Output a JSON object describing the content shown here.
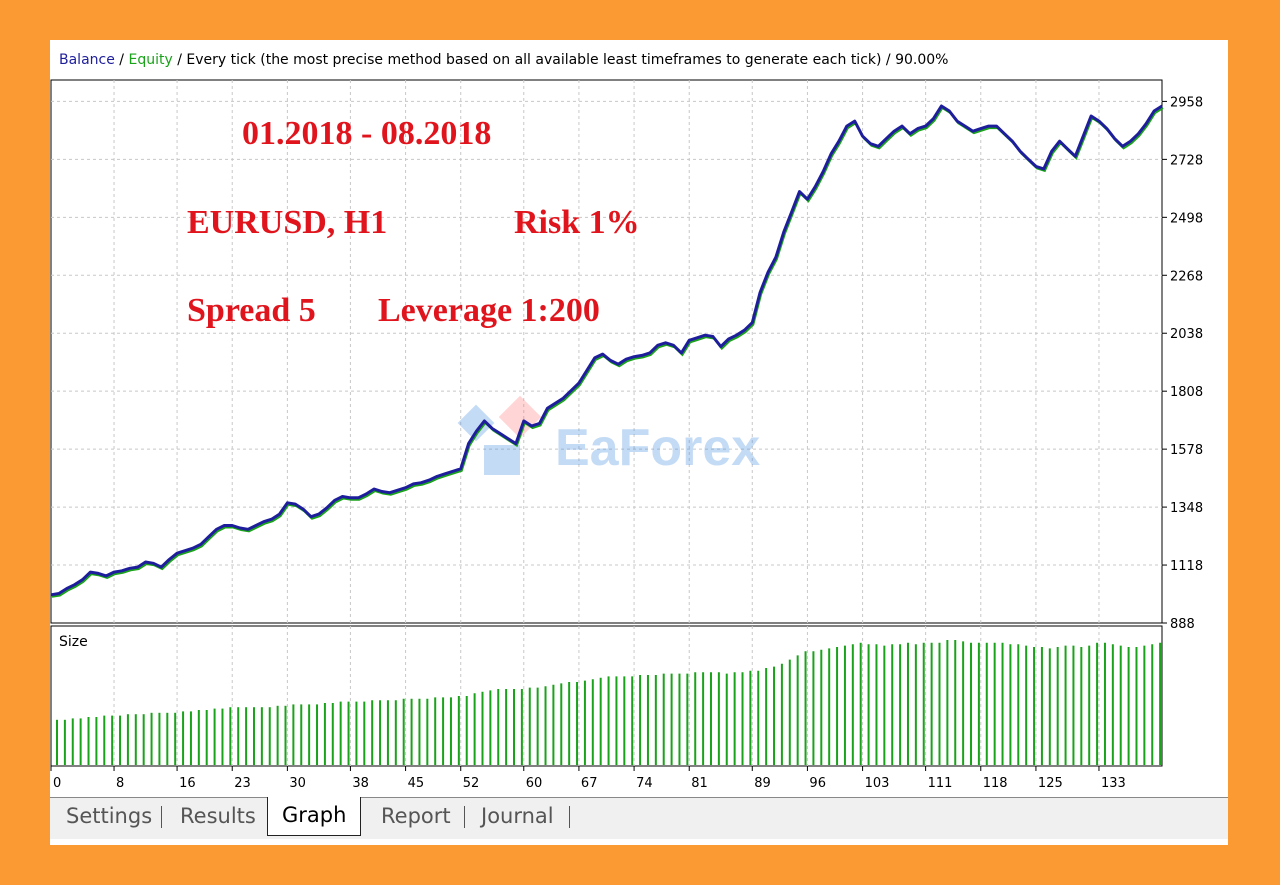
{
  "header": {
    "balance_label": "Balance",
    "sep1": " / ",
    "equity_label": "Equity",
    "rest": " / Every tick (the most precise method based on all available least timeframes to generate each tick) / 90.00%",
    "balance_color": "#1e1e9c",
    "equity_color": "#1aa31a"
  },
  "overlay": {
    "period": "01.2018 - 08.2018",
    "symbol": "EURUSD, H1",
    "risk": "Risk 1%",
    "spread": "Spread 5",
    "leverage": "Leverage 1:200"
  },
  "watermark": {
    "text": "EaForex"
  },
  "size_label": "Size",
  "tabs": [
    "Settings",
    "Results",
    "Graph",
    "Report",
    "Journal"
  ],
  "active_tab": "Graph",
  "chart_data": [
    {
      "type": "line",
      "title": "",
      "ylim": [
        888,
        3043
      ],
      "y_ticks": [
        2958,
        2728,
        2498,
        2268,
        2038,
        1808,
        1578,
        1348,
        1118,
        888
      ],
      "x_ticks": [
        0,
        8,
        16,
        23,
        30,
        38,
        45,
        52,
        60,
        67,
        74,
        81,
        89,
        96,
        103,
        111,
        118,
        125,
        133
      ],
      "xlim": [
        0,
        141
      ],
      "grid": true,
      "series": [
        {
          "name": "Balance",
          "color": "#1e1e9c",
          "x": [
            0,
            1,
            2,
            3,
            4,
            5,
            6,
            7,
            8,
            9,
            10,
            11,
            12,
            13,
            14,
            15,
            16,
            17,
            18,
            19,
            20,
            21,
            22,
            23,
            24,
            25,
            26,
            27,
            28,
            29,
            30,
            31,
            32,
            33,
            34,
            35,
            36,
            37,
            38,
            39,
            40,
            41,
            42,
            43,
            44,
            45,
            46,
            47,
            48,
            49,
            50,
            51,
            52,
            53,
            54,
            55,
            56,
            57,
            58,
            59,
            60,
            61,
            62,
            63,
            64,
            65,
            66,
            67,
            68,
            69,
            70,
            71,
            72,
            73,
            74,
            75,
            76,
            77,
            78,
            79,
            80,
            81,
            82,
            83,
            84,
            85,
            86,
            87,
            88,
            89,
            90,
            91,
            92,
            93,
            94,
            95,
            96,
            97,
            98,
            99,
            100,
            101,
            102,
            103,
            104,
            105,
            106,
            107,
            108,
            109,
            110,
            111,
            112,
            113,
            114,
            115,
            116,
            117,
            118,
            119,
            120,
            121,
            122,
            123,
            124,
            125,
            126,
            127,
            128,
            129,
            130,
            131,
            132,
            133,
            134,
            135,
            136,
            137,
            138,
            139,
            140,
            141
          ],
          "values": [
            1000,
            1005,
            1025,
            1040,
            1060,
            1090,
            1085,
            1075,
            1090,
            1095,
            1105,
            1110,
            1130,
            1125,
            1110,
            1140,
            1165,
            1175,
            1185,
            1200,
            1230,
            1260,
            1275,
            1275,
            1265,
            1260,
            1275,
            1290,
            1300,
            1320,
            1365,
            1360,
            1340,
            1310,
            1320,
            1345,
            1375,
            1390,
            1385,
            1385,
            1400,
            1420,
            1410,
            1405,
            1415,
            1425,
            1440,
            1445,
            1455,
            1470,
            1480,
            1490,
            1500,
            1600,
            1650,
            1690,
            1660,
            1640,
            1620,
            1600,
            1690,
            1670,
            1680,
            1740,
            1760,
            1780,
            1810,
            1840,
            1890,
            1940,
            1955,
            1930,
            1915,
            1935,
            1945,
            1950,
            1960,
            1990,
            2000,
            1990,
            1960,
            2010,
            2020,
            2030,
            2025,
            1985,
            2015,
            2030,
            2050,
            2080,
            2200,
            2280,
            2340,
            2440,
            2520,
            2600,
            2570,
            2620,
            2680,
            2750,
            2800,
            2860,
            2880,
            2820,
            2790,
            2780,
            2810,
            2840,
            2860,
            2830,
            2850,
            2860,
            2890,
            2940,
            2920,
            2880,
            2860,
            2840,
            2850,
            2860,
            2860,
            2830,
            2800,
            2760,
            2730,
            2700,
            2690,
            2760,
            2800,
            2770,
            2740,
            2820,
            2900,
            2880,
            2850,
            2810,
            2780,
            2800,
            2830,
            2870,
            2920,
            2940
          ]
        },
        {
          "name": "Equity",
          "color": "#1aa31a",
          "note": "nearly identical to Balance"
        }
      ]
    },
    {
      "type": "bar",
      "title": "Size",
      "color": "#1aa31a",
      "x_count": 142,
      "values_relative": [
        0.33,
        0.33,
        0.34,
        0.34,
        0.35,
        0.35,
        0.36,
        0.36,
        0.36,
        0.37,
        0.37,
        0.37,
        0.38,
        0.38,
        0.38,
        0.38,
        0.39,
        0.39,
        0.4,
        0.4,
        0.41,
        0.41,
        0.42,
        0.42,
        0.42,
        0.42,
        0.42,
        0.42,
        0.43,
        0.43,
        0.44,
        0.44,
        0.44,
        0.44,
        0.45,
        0.45,
        0.46,
        0.46,
        0.46,
        0.46,
        0.47,
        0.47,
        0.47,
        0.47,
        0.48,
        0.48,
        0.48,
        0.48,
        0.49,
        0.49,
        0.49,
        0.5,
        0.5,
        0.52,
        0.53,
        0.54,
        0.55,
        0.55,
        0.55,
        0.55,
        0.56,
        0.56,
        0.57,
        0.58,
        0.59,
        0.6,
        0.6,
        0.61,
        0.62,
        0.63,
        0.64,
        0.64,
        0.64,
        0.64,
        0.65,
        0.65,
        0.65,
        0.66,
        0.66,
        0.66,
        0.66,
        0.67,
        0.67,
        0.67,
        0.67,
        0.66,
        0.67,
        0.67,
        0.68,
        0.68,
        0.7,
        0.71,
        0.73,
        0.76,
        0.79,
        0.82,
        0.82,
        0.83,
        0.84,
        0.85,
        0.86,
        0.87,
        0.88,
        0.87,
        0.87,
        0.86,
        0.87,
        0.87,
        0.88,
        0.87,
        0.88,
        0.88,
        0.88,
        0.9,
        0.9,
        0.89,
        0.88,
        0.88,
        0.88,
        0.88,
        0.88,
        0.87,
        0.87,
        0.86,
        0.85,
        0.85,
        0.84,
        0.85,
        0.86,
        0.86,
        0.85,
        0.86,
        0.88,
        0.88,
        0.87,
        0.86,
        0.85,
        0.85,
        0.86,
        0.87,
        0.88,
        0.88
      ]
    }
  ]
}
